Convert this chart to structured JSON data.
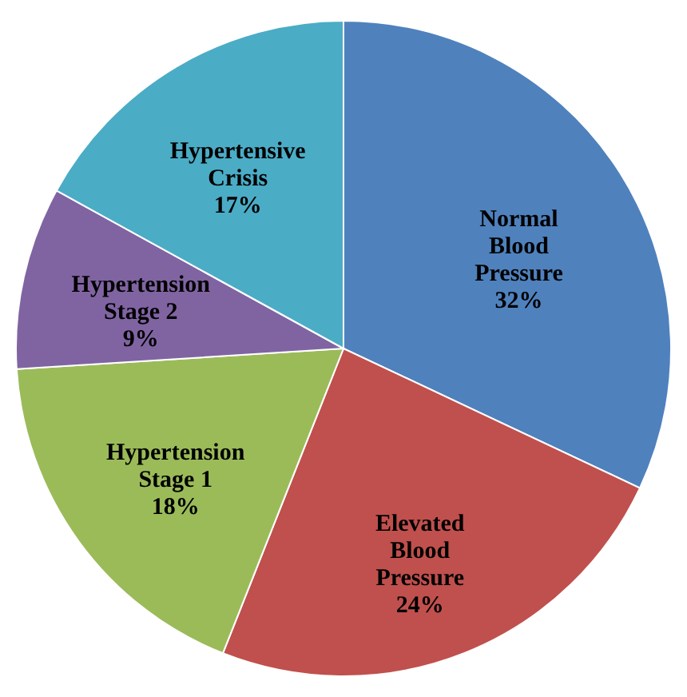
{
  "chart_data": {
    "type": "pie",
    "categories": [
      "Normal Blood Pressure",
      "Elevated Blood Pressure",
      "Hypertension Stage 1",
      "Hypertension Stage 2",
      "Hypertensive Crisis"
    ],
    "values": [
      32,
      24,
      18,
      9,
      17
    ],
    "value_labels": [
      "32%",
      "24%",
      "18%",
      "9%",
      "17%"
    ],
    "colors": [
      "#4f81bd",
      "#c0504d",
      "#9bbb59",
      "#8064a2",
      "#4bacc6"
    ],
    "legend": false
  }
}
